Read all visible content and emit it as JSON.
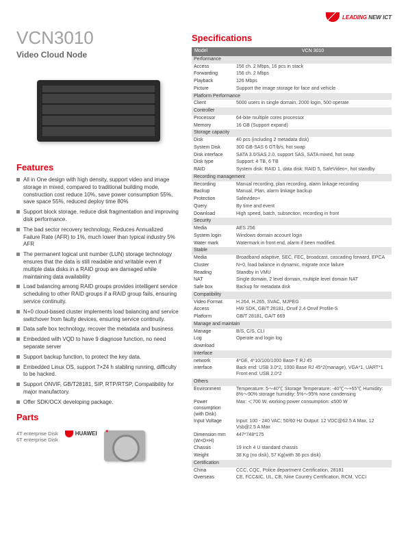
{
  "brand": {
    "leading": "LEADING",
    "new_ict": "NEW ICT"
  },
  "title": "VCN3010",
  "subtitle": "Video Cloud Node",
  "sections": {
    "features": "Features",
    "parts": "Parts",
    "specs": "Specifications"
  },
  "features": [
    "All in One design with high density, support video and image storage in mixed, compared to traditional building mode, construction cost reduce 10%, save power consumption 55%, save space 55%, reduced deploy time 80%",
    "Support block storage, reduce disk fragmentation and improving disk performance.",
    "The bad sector recovery technology, Reduces Annualized Failure Rate (AFR) to 1%, much lower than typical industry 5% AFR",
    "The permanent logical unit number (LUN) storage technology ensures that the data is still readable and writable even if multiple data disks in a RAID group are damaged while maintaining data availability",
    "Load balancing among RAID groups provides intelligent service scheduling to other RAID groups if a RAID group fails, ensuring service continuity.",
    "N+0 cloud-based cluster implements load balancing and service switchover from faulty devices, ensuring service continuity.",
    "Data safe box technology, recover the metadata and business",
    "Embedded with VQD to have 9 diagnose function, no need separate server",
    "Support backup function, to protect the key data.",
    "Embedded Linux OS, support 7×24 h stabling running, difficulty to be hacked.",
    "Support ONVIF, GB/T28181, SIP, RTP/RTSP, Compatibility for major manufactory.",
    "Offer SDK/OCX developing package."
  ],
  "parts": {
    "huawei": "HUAWEI",
    "disk1": "4T enterprise Disk",
    "disk2": "6T enterprise Disk"
  },
  "spec_header": {
    "model": "Model",
    "value": "VCN 3010"
  },
  "specs": [
    {
      "section": "Performance"
    },
    {
      "k": "Access",
      "v": "156 ch. 2 Mbps, 16 pcs in stack"
    },
    {
      "k": "Forwarding",
      "v": "156 ch. 2 Mbps"
    },
    {
      "k": "Playback",
      "v": "126 Mbps"
    },
    {
      "k": "Picture",
      "v": "Support the image storage for face and vehicle"
    },
    {
      "section": "Platform Performance"
    },
    {
      "k": "Client",
      "v": "5000 users in single domain, 2000 login, 500 operate"
    },
    {
      "section": "Controller"
    },
    {
      "k": "Processor",
      "v": "64-bite multiple cores processor"
    },
    {
      "k": "Memory",
      "v": "16 GB (Support expand)"
    },
    {
      "section": "Storage capacity"
    },
    {
      "k": "Disk",
      "v": "40 pcs (including 2 metadata disk)"
    },
    {
      "k": "System Disk",
      "v": "300 GB-SAS 6 GT/b/s, hot swap"
    },
    {
      "k": "Disk interface",
      "v": "SATA 3.0/SAS 2.0, support SAS, SATA mixed, hot swap"
    },
    {
      "k": "Disk type",
      "v": "Support: 4 TB, 6 TB"
    },
    {
      "k": "RAID",
      "v": "System disk: RAID 1, data disk: RAID 5, SafeVideo+, hot standby"
    },
    {
      "section": "Recording management"
    },
    {
      "k": "Recording",
      "v": "Manual recording, plan recording, alarm linkage recording"
    },
    {
      "k": "Backup",
      "v": "Manual, Plan, alarm linkage backup"
    },
    {
      "k": "Protection",
      "v": "Safevideo+"
    },
    {
      "k": "Query",
      "v": "By time and event"
    },
    {
      "k": "Download",
      "v": "High speed, batch, subsection, recording in front"
    },
    {
      "section": "Security"
    },
    {
      "k": "Media",
      "v": "AES 256"
    },
    {
      "k": "System login",
      "v": "Windows domain account login"
    },
    {
      "k": "Water mark",
      "v": "Watermark in front end, alarm if been modified."
    },
    {
      "section": "Stable"
    },
    {
      "k": "Media",
      "v": "Broadband adaptive, SEC, FEC, broadcast, cascading forward, EPCA"
    },
    {
      "k": "Cluster",
      "v": "N+0, load balance in dynamic, migrate once failure"
    },
    {
      "k": "Reading",
      "v": "Standby in VMU"
    },
    {
      "k": "NAT",
      "v": "Single domain, 2 level domain, multiple level domain NAT"
    },
    {
      "k": "Safe box",
      "v": "Backup for metadata disk"
    },
    {
      "section": "Compatibility"
    },
    {
      "k": "Video Format",
      "v": "H.264, H.265, SVAC, MJPEG"
    },
    {
      "k": "Access",
      "v": "HW SDK, GB/T 28181, Onvif 2.4 Onvif Profile-S"
    },
    {
      "k": "Platform",
      "v": "GB/T 28181, GA/T 669"
    },
    {
      "section": "Manage and maintain"
    },
    {
      "k": "Manage",
      "v": "B/S, C/S, CLI"
    },
    {
      "k": "Log",
      "v": "Operate and login log"
    },
    {
      "k": "download",
      "v": ""
    },
    {
      "section": "Interface"
    },
    {
      "k": "network",
      "v": "4*GE, 4*10/100/1000 Base-T RJ 45"
    },
    {
      "k": "interface",
      "v": "Back end: USB 3.0*2, 1000 Base RJ 45*2(manage), VGA*1, UART*1 Front end: USB 2.0*2"
    },
    {
      "section": "Others"
    },
    {
      "k": "Environment",
      "v": "Temperature: 5～40℃ Storage Temperature: -40℃～+65℃ Humidity: 8%～90% storage humidity: 5%～95% none condensing"
    },
    {
      "k": "Power consumption (with Disk)",
      "v": "Max: ＜700 W, working power consumption: ≤500 W"
    },
    {
      "k": "Input Voltage",
      "v": "Input: 100 - 240 VAC; 50/60 Hz Output: 12 VDC@62.5 A Max, 12 Vsb@2.5 A Max"
    },
    {
      "k": "Dimension mm (W×D×H)",
      "v": "447*748*175"
    },
    {
      "k": "Chassis",
      "v": "19 inch 4 U standard chassis"
    },
    {
      "k": "Weight",
      "v": "38 Kg (no disk), 57 Kg(with 36 pcs disk)"
    },
    {
      "section": "Certification"
    },
    {
      "k": "China",
      "v": "CCC, CQC, Police department Certification, 28181"
    },
    {
      "k": "Overseas",
      "v": "CE, FCC&IC, UL, CB, Nine Country Certification, RCM, VCCI"
    }
  ]
}
